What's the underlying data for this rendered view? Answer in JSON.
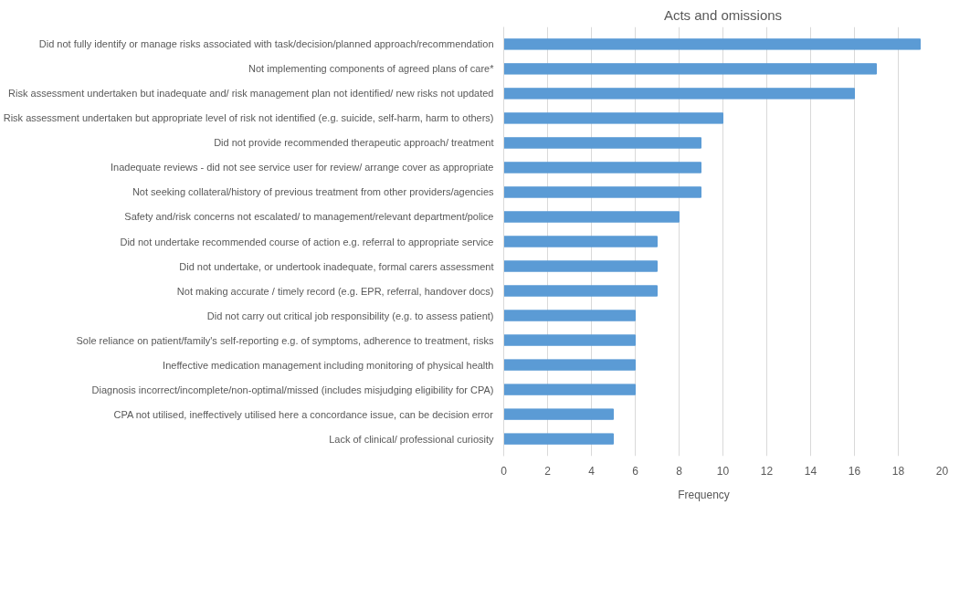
{
  "chart_data": {
    "type": "bar",
    "orientation": "horizontal",
    "title": "Acts and omissions",
    "categories": [
      "Did not fully identify or manage risks associated with task/decision/planned approach/recommendation",
      "Not implementing components of agreed plans of care*",
      "Risk assessment undertaken but inadequate and/ risk management plan not identified/ new risks not updated",
      "Risk assessment undertaken but appropriate level of risk not identified (e.g. suicide, self-harm, harm to others)",
      "Did not provide recommended therapeutic approach/ treatment",
      "Inadequate reviews - did not see service user for review/ arrange cover as appropriate",
      "Not seeking collateral/history of previous treatment from other providers/agencies",
      "Safety and/risk concerns not escalated/ to management/relevant department/police",
      "Did not undertake recommended course of action e.g. referral to appropriate service",
      "Did not undertake, or undertook inadequate, formal carers assessment",
      "Not making accurate / timely record (e.g. EPR, referral, handover docs)",
      "Did not carry out critical job responsibility (e.g. to assess patient)",
      "Sole reliance on patient/family's self-reporting e.g. of symptoms, adherence to treatment, risks",
      "Ineffective medication management including monitoring of physical health",
      "Diagnosis incorrect/incomplete/non-optimal/missed (includes misjudging eligibility for CPA)",
      "CPA not utilised, ineffectively utilised here a concordance issue, can be decision error",
      "Lack of clinical/ professional curiosity"
    ],
    "series": [
      {
        "name": "Frequency",
        "color": "#5b9bd5",
        "values": [
          19,
          17,
          16,
          10,
          9,
          9,
          9,
          8,
          7,
          7,
          7,
          6,
          6,
          6,
          6,
          5,
          5
        ]
      }
    ],
    "xlim": [
      0,
      20
    ],
    "xticks": [
      0,
      2,
      4,
      6,
      8,
      10,
      12,
      14,
      16,
      18,
      20
    ],
    "grid": "x",
    "legend": "bottom"
  }
}
